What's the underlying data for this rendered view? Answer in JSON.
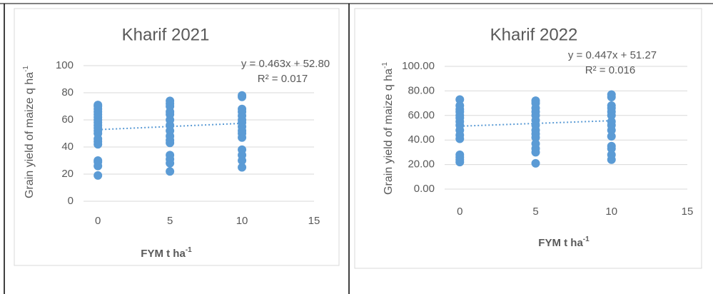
{
  "chart_data": [
    {
      "type": "scatter",
      "title": "Kharif 2021",
      "x_label": {
        "text": "FYM t ha",
        "sup": "-1"
      },
      "y_label": {
        "text": "Grain yield of maize q  ha",
        "sup": "-1"
      },
      "color": "#5b9bd5",
      "x": [
        0,
        0,
        0,
        0,
        0,
        0,
        0,
        0,
        0,
        0,
        0,
        0,
        0,
        0,
        0,
        0,
        0,
        0,
        0,
        5,
        5,
        5,
        5,
        5,
        5,
        5,
        5,
        5,
        5,
        5,
        5,
        5,
        5,
        5,
        10,
        10,
        10,
        10,
        10,
        10,
        10,
        10,
        10,
        10,
        10,
        10,
        10,
        10,
        10
      ],
      "values": [
        19,
        26,
        29,
        30,
        42,
        44,
        46,
        50,
        52,
        54,
        56,
        58,
        60,
        62,
        64,
        66,
        68,
        70,
        71,
        22,
        28,
        31,
        34,
        43,
        45,
        48,
        52,
        56,
        60,
        64,
        66,
        70,
        72,
        74,
        25,
        30,
        34,
        38,
        47,
        50,
        52,
        55,
        58,
        60,
        63,
        66,
        68,
        77,
        78
      ],
      "xlim": [
        -1,
        15
      ],
      "xticks": [
        0,
        5,
        10,
        15
      ],
      "ylim": [
        0,
        100
      ],
      "yticks": [
        0,
        20,
        40,
        60,
        80,
        100
      ],
      "grid": true,
      "trendline": {
        "slope": 0.463,
        "intercept": 52.8,
        "label": "y = 0.463x + 52.80",
        "r2_label": "R² = 0.017"
      }
    },
    {
      "type": "scatter",
      "title": "Kharif 2022",
      "x_label": {
        "text": "FYM t ha",
        "sup": "-1"
      },
      "y_label": {
        "text": "Grain yield of maize q  ha",
        "sup": "-1"
      },
      "color": "#5b9bd5",
      "x": [
        0,
        0,
        0,
        0,
        0,
        0,
        0,
        0,
        0,
        0,
        0,
        0,
        0,
        0,
        0,
        5,
        5,
        5,
        5,
        5,
        5,
        5,
        5,
        5,
        5,
        5,
        5,
        5,
        5,
        10,
        10,
        10,
        10,
        10,
        10,
        10,
        10,
        10,
        10,
        10,
        10,
        10,
        10
      ],
      "values": [
        22,
        24,
        26,
        28,
        41,
        44,
        48,
        52,
        55,
        58,
        60,
        63,
        65,
        68,
        73,
        21,
        30,
        33,
        37,
        42,
        45,
        48,
        52,
        56,
        60,
        63,
        66,
        70,
        72,
        24,
        28,
        33,
        35,
        43,
        48,
        52,
        55,
        60,
        63,
        66,
        68,
        75,
        77
      ],
      "xlim": [
        -1,
        15
      ],
      "xticks": [
        0,
        5,
        10,
        15
      ],
      "ylim": [
        0,
        100
      ],
      "yticks": [
        {
          "value": 0,
          "label": "0.00"
        },
        {
          "value": 20,
          "label": "20.00"
        },
        {
          "value": 40,
          "label": "40.00"
        },
        {
          "value": 60,
          "label": "60.00"
        },
        {
          "value": 80,
          "label": "80.00"
        },
        {
          "value": 100,
          "label": "100.00"
        }
      ],
      "grid": true,
      "trendline": {
        "slope": 0.447,
        "intercept": 51.27,
        "label": "y = 0.447x + 51.27",
        "r2_label": "R² = 0.016"
      }
    }
  ]
}
